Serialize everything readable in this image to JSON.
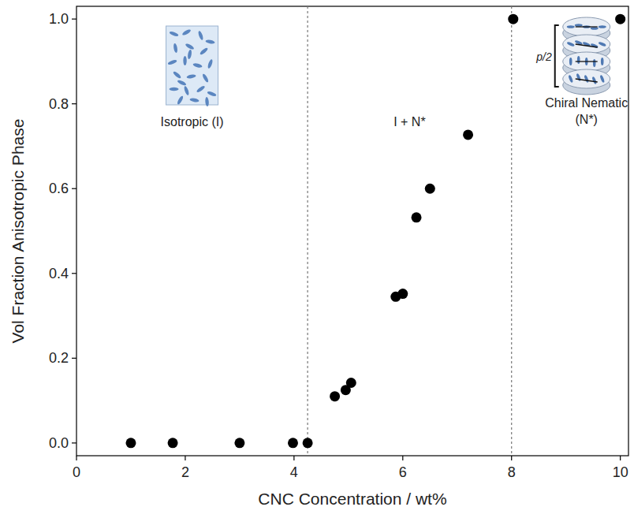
{
  "chart_data": {
    "type": "scatter",
    "x_label": "CNC Concentration / wt%",
    "y_label": "Vol Fraction Anisotropic Phase",
    "x": [
      1.0,
      1.77,
      3.0,
      3.98,
      4.25,
      4.75,
      4.95,
      5.05,
      5.87,
      6.0,
      6.25,
      6.5,
      7.2,
      8.03,
      10.0
    ],
    "values": [
      0,
      0,
      0,
      0,
      0,
      0.11,
      0.125,
      0.142,
      0.345,
      0.352,
      0.532,
      0.6,
      0.727,
      1.0,
      1.0
    ],
    "color": "#000000",
    "marker": "circle",
    "xlim": [
      0,
      10.15
    ],
    "ylim": [
      -0.03,
      1.03
    ],
    "xticks": [
      0,
      2,
      4,
      6,
      8,
      10
    ],
    "yticks": [
      {
        "value": 0,
        "label": "0.0"
      },
      0.2,
      0.4,
      0.6,
      0.8,
      {
        "value": 1,
        "label": "1.0"
      }
    ],
    "boundaries": [
      4.25,
      8.0
    ],
    "regions": [
      {
        "label": "Isotropic (I)"
      },
      {
        "label": "I + N*"
      },
      {
        "label": "Chiral Nematic (N*)"
      }
    ],
    "pitch_label": "p/2",
    "grid": false
  }
}
